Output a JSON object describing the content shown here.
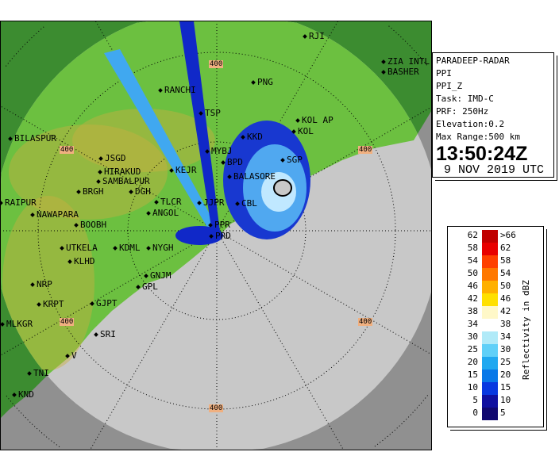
{
  "radar": {
    "station": "PARADEEP-RADAR",
    "product": "PPI",
    "product_type": "PPI_Z",
    "task": "Task: IMD-C",
    "prf": "PRF: 250Hz",
    "elevation": "Elevation:0.2",
    "max_range": "Max Range:500 km",
    "time": "13:50:24Z",
    "date": "9 NOV 2019 UTC"
  },
  "legend": {
    "title": "Reflectivity in dBZ",
    "bins": [
      {
        "lo": "62",
        "hi": ">66",
        "color": "#c00000"
      },
      {
        "lo": "58",
        "hi": "62",
        "color": "#e80000"
      },
      {
        "lo": "54",
        "hi": "58",
        "color": "#ff4000"
      },
      {
        "lo": "50",
        "hi": "54",
        "color": "#ff7800"
      },
      {
        "lo": "46",
        "hi": "50",
        "color": "#ffb000"
      },
      {
        "lo": "42",
        "hi": "46",
        "color": "#ffe000"
      },
      {
        "lo": "38",
        "hi": "42",
        "color": "#fff8c8"
      },
      {
        "lo": "34",
        "hi": "38",
        "color": "#ffffff"
      },
      {
        "lo": "30",
        "hi": "34",
        "color": "#b0eaf8"
      },
      {
        "lo": "25",
        "hi": "30",
        "color": "#60d0f8"
      },
      {
        "lo": "20",
        "hi": "25",
        "color": "#20a8f0"
      },
      {
        "lo": "15",
        "hi": "20",
        "color": "#0878e8"
      },
      {
        "lo": "10",
        "hi": "15",
        "color": "#0838e0"
      },
      {
        "lo": "5",
        "hi": "10",
        "color": "#1010a0"
      },
      {
        "lo": "0",
        "hi": "5",
        "color": "#100870"
      }
    ]
  },
  "map": {
    "range_label": "400",
    "colors": {
      "land": "#6cc040",
      "sea": "#c8c8c8",
      "land_outside": "#3c8c30",
      "sea_outside": "#909090",
      "hills": "#c8b040"
    },
    "places": [
      "RJI",
      "ZIA INTL",
      "BASHER",
      "PNG",
      "RANCHI",
      "TSP",
      "KOL AP",
      "KOL",
      "KKD",
      "MYBJ",
      "BPD",
      "SGP",
      "BALASORE",
      "BILASPUR",
      "JSGD",
      "HIRAKUD",
      "SAMBALPUR",
      "BRGH",
      "DGH",
      "KEJR",
      "RAIPUR",
      "NAWAPARA",
      "BOOBH",
      "TLCR",
      "ANGOL",
      "JJPR",
      "CBL",
      "PPR",
      "PRD",
      "UTKELA",
      "KDML",
      "NYGH",
      "KLHD",
      "GNJM",
      "GPL",
      "NRP",
      "KRPT",
      "GJPT",
      "MLKGR",
      "SRI",
      "V",
      "TNI",
      "KND"
    ]
  }
}
